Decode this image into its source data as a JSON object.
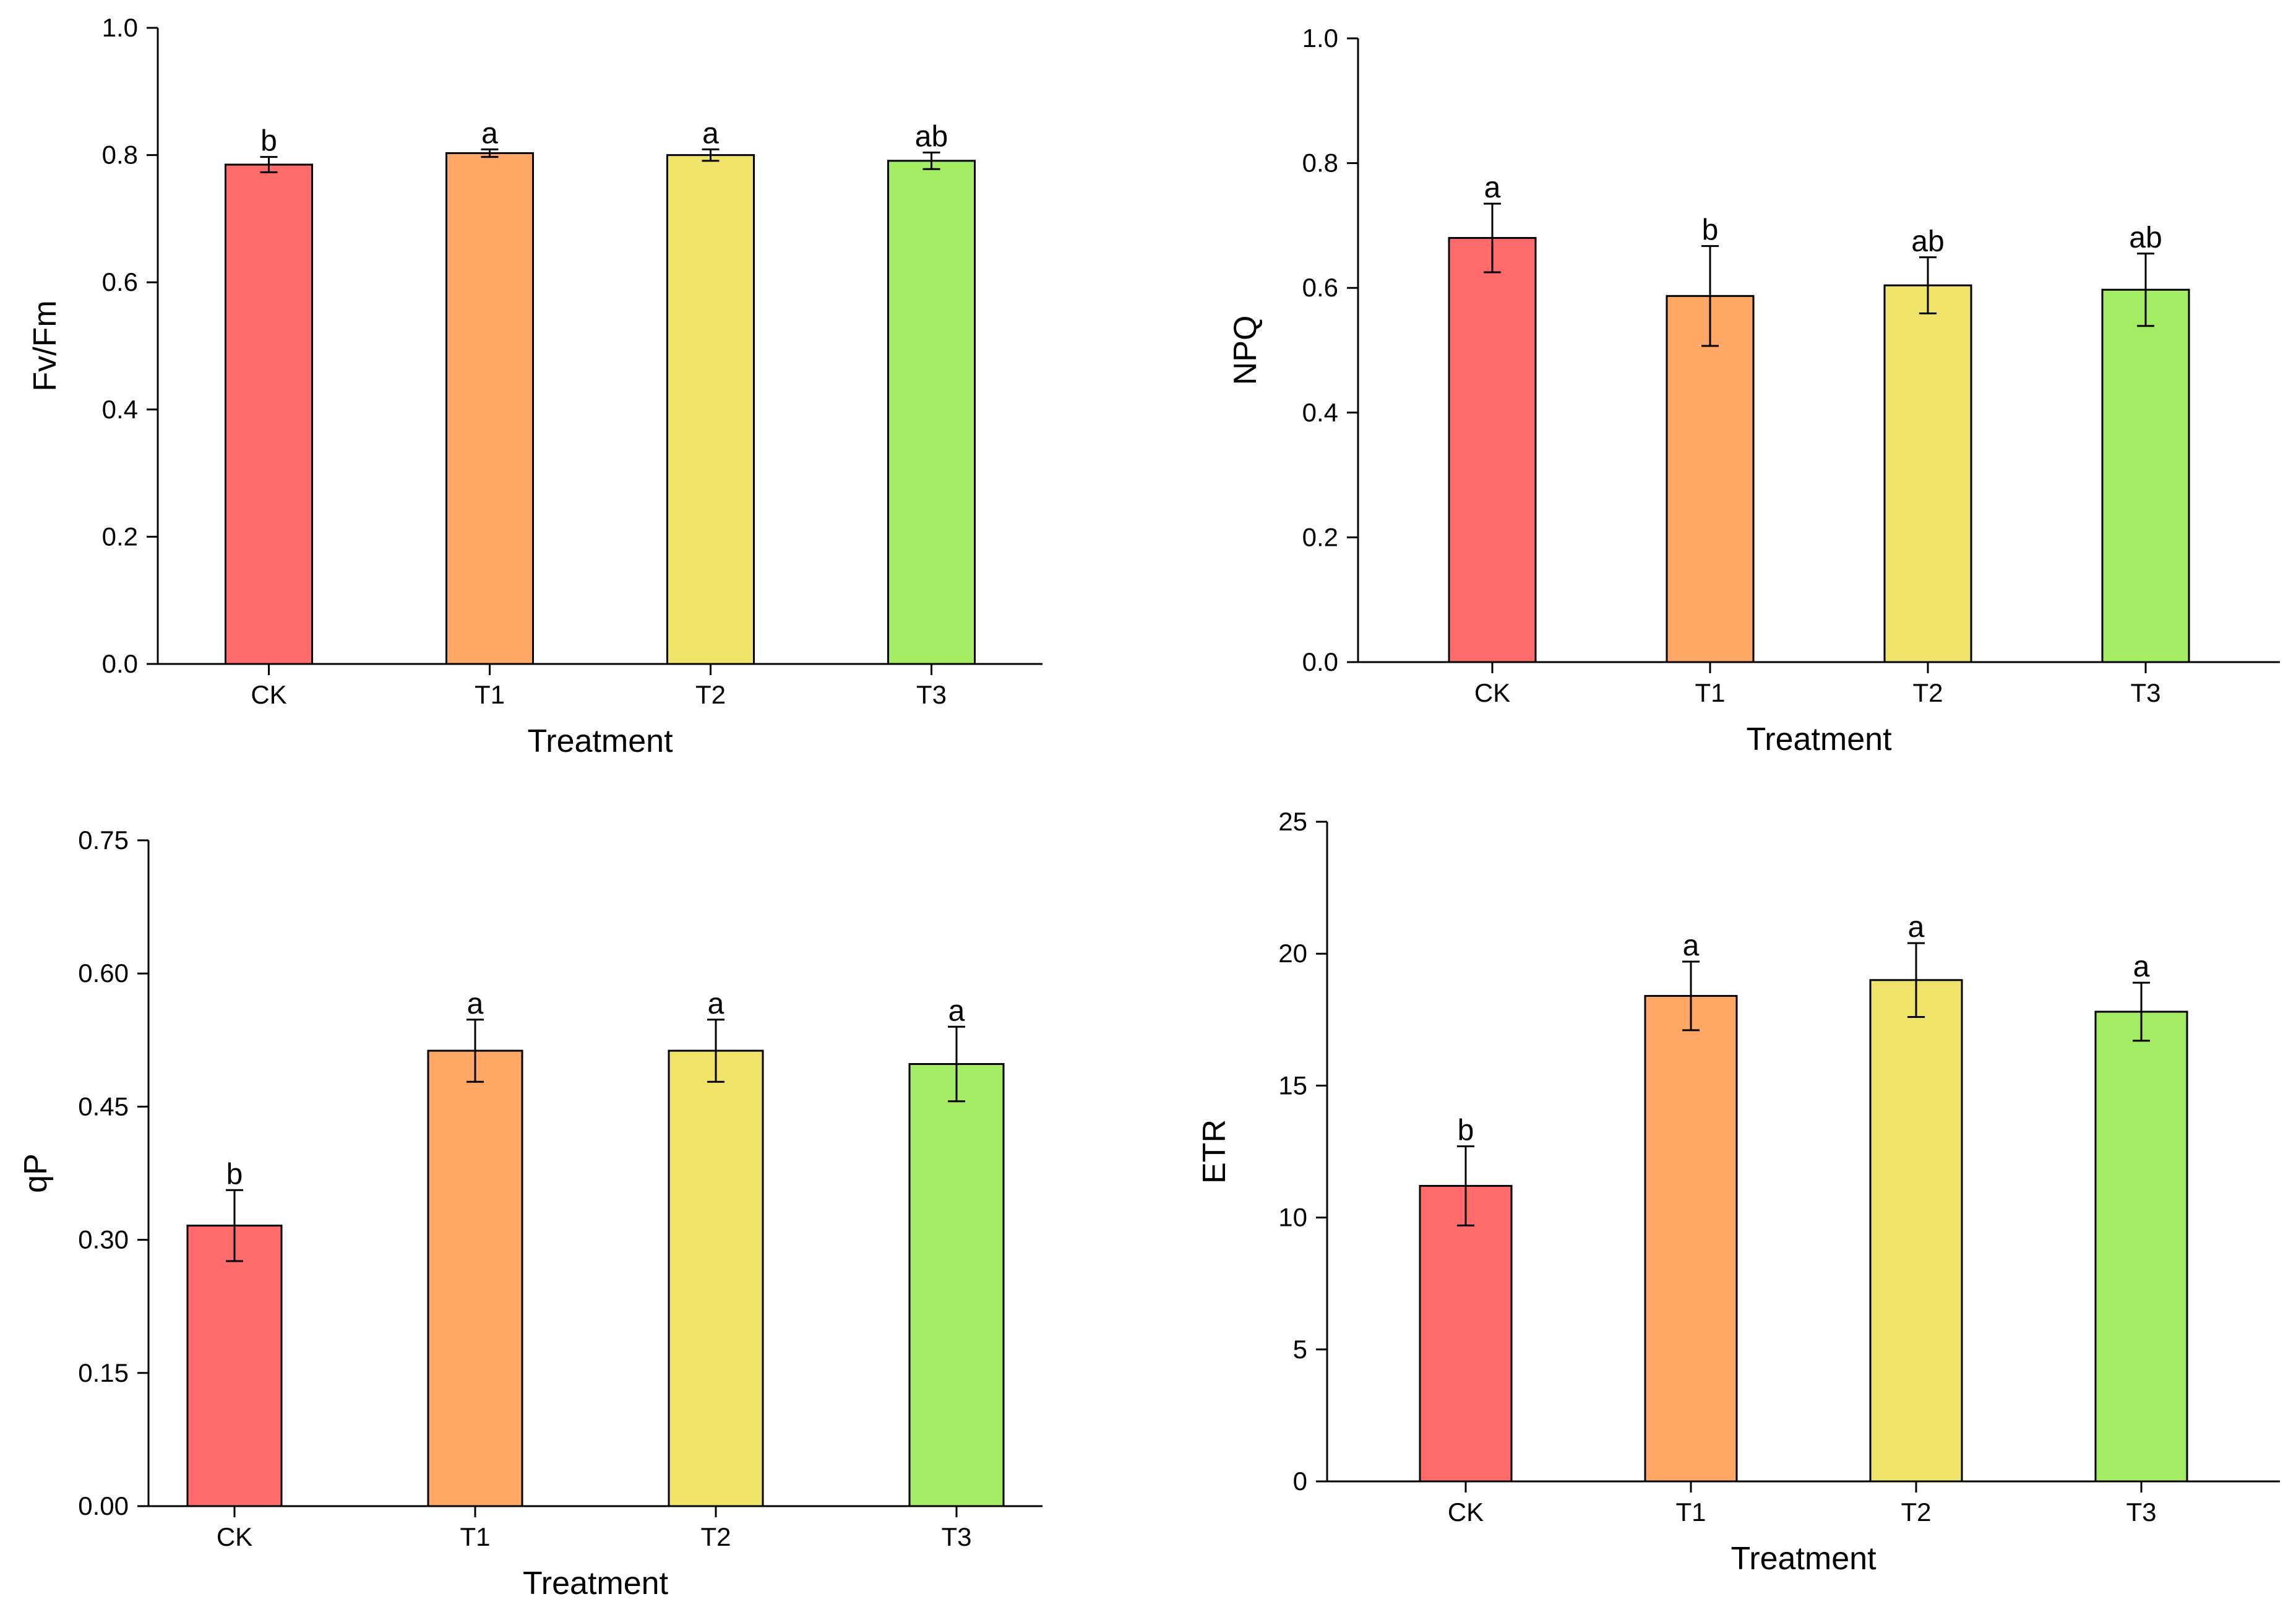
{
  "colors": {
    "CK": "#ff6b6b",
    "T1": "#ffa764",
    "T2": "#efe36a",
    "T3": "#a4ec64",
    "axis": "#000000",
    "bar_stroke": "#000000"
  },
  "chart_data": [
    {
      "type": "bar",
      "categories": [
        "CK",
        "T1",
        "T2",
        "T3"
      ],
      "values": [
        0.785,
        0.803,
        0.8,
        0.791
      ],
      "errors": [
        0.012,
        0.006,
        0.009,
        0.013
      ],
      "significance": [
        "b",
        "a",
        "a",
        "ab"
      ],
      "xlabel": "Treatment",
      "ylabel": "Fv/Fm",
      "ylim": [
        0,
        1.0
      ],
      "yticks": [
        "0.0",
        "0.2",
        "0.4",
        "0.6",
        "0.8",
        "1.0"
      ],
      "ytick_values": [
        0,
        0.2,
        0.4,
        0.6,
        0.8,
        1.0
      ],
      "grid": false
    },
    {
      "type": "bar",
      "categories": [
        "CK",
        "T1",
        "T2",
        "T3"
      ],
      "values": [
        0.68,
        0.587,
        0.604,
        0.597
      ],
      "errors": [
        0.055,
        0.08,
        0.045,
        0.058
      ],
      "significance": [
        "a",
        "b",
        "ab",
        "ab"
      ],
      "xlabel": "Treatment",
      "ylabel": "NPQ",
      "ylim": [
        0,
        1.0
      ],
      "yticks": [
        "0.0",
        "0.2",
        "0.4",
        "0.6",
        "0.8",
        "1.0"
      ],
      "ytick_values": [
        0,
        0.2,
        0.4,
        0.6,
        0.8,
        1.0
      ],
      "grid": false
    },
    {
      "type": "bar",
      "categories": [
        "CK",
        "T1",
        "T2",
        "T3"
      ],
      "values": [
        0.316,
        0.513,
        0.513,
        0.498
      ],
      "errors": [
        0.04,
        0.035,
        0.035,
        0.042
      ],
      "significance": [
        "b",
        "a",
        "a",
        "a"
      ],
      "xlabel": "Treatment",
      "ylabel": "qP",
      "ylim": [
        0,
        0.75
      ],
      "yticks": [
        "0.00",
        "0.15",
        "0.30",
        "0.45",
        "0.60",
        "0.75"
      ],
      "ytick_values": [
        0,
        0.15,
        0.3,
        0.45,
        0.6,
        0.75
      ],
      "grid": false
    },
    {
      "type": "bar",
      "categories": [
        "CK",
        "T1",
        "T2",
        "T3"
      ],
      "values": [
        11.2,
        18.4,
        19.0,
        17.8
      ],
      "errors": [
        1.5,
        1.3,
        1.4,
        1.1
      ],
      "significance": [
        "b",
        "a",
        "a",
        "a"
      ],
      "xlabel": "Treatment",
      "ylabel": "ETR",
      "ylim": [
        0,
        25
      ],
      "yticks": [
        "0",
        "5",
        "10",
        "15",
        "20",
        "25"
      ],
      "ytick_values": [
        0,
        5,
        10,
        15,
        20,
        25
      ],
      "grid": false
    }
  ]
}
